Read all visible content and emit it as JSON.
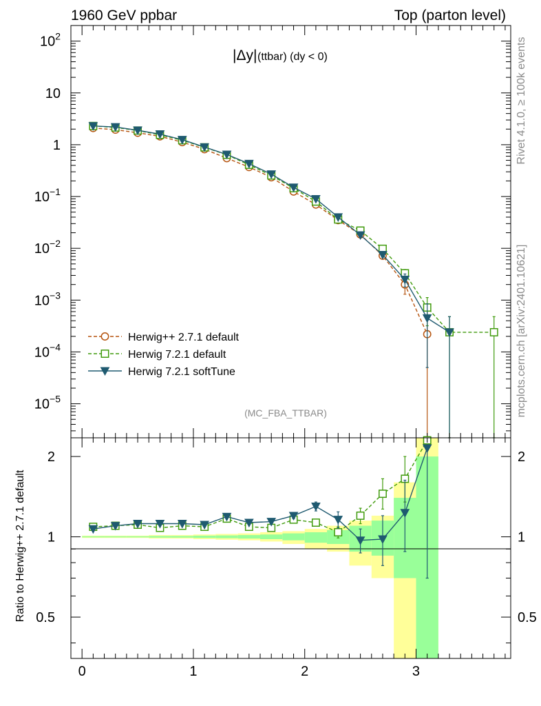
{
  "header": {
    "left": "1960 GeV ppbar",
    "right": "Top (parton level)"
  },
  "side_labels": {
    "rivet": "Rivet 4.1.0, ≥ 100k events",
    "mcplots": "mcplots.cern.ch [arXiv:2401.10621]"
  },
  "colors": {
    "herwigpp": "#b5530e",
    "herwig721": "#3f9a0b",
    "softtune": "#1f5a70",
    "band_yellow": "#ffff99",
    "band_green": "#99ff99"
  },
  "chart_data": [
    {
      "type": "line",
      "scale": "log",
      "title_main": "|Δy|",
      "title_sub": "(ttbar) (dy < 0)",
      "watermark": "(MC_FBA_TTBAR)",
      "ylim": [
        2.2e-06,
        200
      ],
      "xlim": [
        -0.1,
        3.85
      ],
      "y_ticks": [
        {
          "value": 100,
          "base": "10",
          "exp": "2"
        },
        {
          "value": 10,
          "base": "10",
          "exp": ""
        },
        {
          "value": 1,
          "base": "1",
          "exp": ""
        },
        {
          "value": 0.1,
          "base": "10",
          "exp": "−1"
        },
        {
          "value": 0.01,
          "base": "10",
          "exp": "−2"
        },
        {
          "value": 0.001,
          "base": "10",
          "exp": "−3"
        },
        {
          "value": 0.0001,
          "base": "10",
          "exp": "−4"
        },
        {
          "value": 1e-05,
          "base": "10",
          "exp": "−5"
        }
      ],
      "legend_position": "bottom-left",
      "series": [
        {
          "name": "Herwig++ 2.7.1 default",
          "key": "herwigpp",
          "marker": "circle",
          "dashed": true,
          "x": [
            0.1,
            0.3,
            0.5,
            0.7,
            0.9,
            1.1,
            1.3,
            1.5,
            1.7,
            1.9,
            2.1,
            2.3,
            2.5,
            2.7,
            2.9,
            3.1
          ],
          "y": [
            2.1,
            1.95,
            1.7,
            1.45,
            1.12,
            0.82,
            0.55,
            0.37,
            0.235,
            0.125,
            0.07,
            0.035,
            0.0185,
            0.0072,
            0.002,
            0.00022
          ],
          "err_low": [
            0,
            0,
            0,
            0,
            0,
            0,
            0,
            0,
            0,
            0,
            0,
            0,
            0,
            0.0006,
            0.0007,
            0.00022
          ],
          "err_high": [
            0,
            0,
            0,
            0,
            0,
            0,
            0,
            0,
            0,
            0,
            0,
            0,
            0,
            0.0006,
            0.0007,
            0.0002
          ]
        },
        {
          "name": "Herwig 7.2.1 default",
          "key": "herwig721",
          "marker": "square",
          "dashed": true,
          "x": [
            0.1,
            0.3,
            0.5,
            0.7,
            0.9,
            1.1,
            1.3,
            1.5,
            1.7,
            1.9,
            2.1,
            2.3,
            2.5,
            2.7,
            2.9,
            3.1,
            3.3,
            3.7
          ],
          "y": [
            2.3,
            2.15,
            1.88,
            1.55,
            1.22,
            0.89,
            0.64,
            0.41,
            0.255,
            0.145,
            0.08,
            0.036,
            0.022,
            0.0098,
            0.0033,
            0.00072,
            0.00024,
            0.00024
          ],
          "err_low": [
            0,
            0,
            0,
            0,
            0,
            0,
            0,
            0,
            0,
            0,
            0,
            0,
            0,
            0.0006,
            0.0006,
            0.0004,
            0.00024,
            0.00024
          ],
          "err_high": [
            0,
            0,
            0,
            0,
            0,
            0,
            0,
            0,
            0,
            0,
            0,
            0,
            0,
            0.0006,
            0.0006,
            0.0004,
            0.00024,
            0.00024
          ]
        },
        {
          "name": "Herwig 7.2.1 softTune",
          "key": "softtune",
          "marker": "triangle-down",
          "dashed": false,
          "x": [
            0.1,
            0.3,
            0.5,
            0.7,
            0.9,
            1.1,
            1.3,
            1.5,
            1.7,
            1.9,
            2.1,
            2.3,
            2.5,
            2.7,
            2.9,
            3.1,
            3.3
          ],
          "y": [
            2.3,
            2.2,
            1.9,
            1.6,
            1.25,
            0.9,
            0.65,
            0.43,
            0.27,
            0.15,
            0.09,
            0.04,
            0.018,
            0.0075,
            0.0025,
            0.00045,
            0.00024
          ],
          "err_low": [
            0,
            0,
            0,
            0,
            0,
            0,
            0,
            0,
            0,
            0,
            0,
            0,
            0,
            0.0007,
            0.0007,
            0.0004,
            0.00024
          ],
          "err_high": [
            0,
            0,
            0,
            0,
            0,
            0,
            0,
            0,
            0,
            0,
            0,
            0,
            0,
            0.0007,
            0.0007,
            0.0004,
            0.00024
          ]
        }
      ]
    },
    {
      "type": "line",
      "scale": "log",
      "ylabel": "Ratio to Herwig++ 2.7.1 default",
      "ylim": [
        0.35,
        2.35
      ],
      "xlim": [
        -0.1,
        3.85
      ],
      "y_ticks": [
        2,
        1,
        0.5
      ],
      "x_ticks": [
        0,
        1,
        2,
        3
      ],
      "reference": 1,
      "bands": [
        {
          "x0": 0.0,
          "x1": 0.2,
          "yl": 0.99,
          "yh": 1.01,
          "gl": 0.995,
          "gh": 1.005
        },
        {
          "x0": 0.2,
          "x1": 0.4,
          "yl": 0.99,
          "yh": 1.01,
          "gl": 0.995,
          "gh": 1.005
        },
        {
          "x0": 0.4,
          "x1": 0.6,
          "yl": 0.99,
          "yh": 1.01,
          "gl": 0.995,
          "gh": 1.005
        },
        {
          "x0": 0.6,
          "x1": 0.8,
          "yl": 0.985,
          "yh": 1.015,
          "gl": 0.993,
          "gh": 1.007
        },
        {
          "x0": 0.8,
          "x1": 1.0,
          "yl": 0.985,
          "yh": 1.015,
          "gl": 0.993,
          "gh": 1.007
        },
        {
          "x0": 1.0,
          "x1": 1.2,
          "yl": 0.98,
          "yh": 1.02,
          "gl": 0.99,
          "gh": 1.01
        },
        {
          "x0": 1.2,
          "x1": 1.4,
          "yl": 0.975,
          "yh": 1.025,
          "gl": 0.988,
          "gh": 1.012
        },
        {
          "x0": 1.4,
          "x1": 1.6,
          "yl": 0.97,
          "yh": 1.03,
          "gl": 0.985,
          "gh": 1.015
        },
        {
          "x0": 1.6,
          "x1": 1.8,
          "yl": 0.96,
          "yh": 1.04,
          "gl": 0.98,
          "gh": 1.02
        },
        {
          "x0": 1.8,
          "x1": 2.0,
          "yl": 0.94,
          "yh": 1.05,
          "gl": 0.97,
          "gh": 1.03
        },
        {
          "x0": 2.0,
          "x1": 2.2,
          "yl": 0.9,
          "yh": 1.07,
          "gl": 0.95,
          "gh": 1.04
        },
        {
          "x0": 2.2,
          "x1": 2.4,
          "yl": 0.88,
          "yh": 1.1,
          "gl": 0.94,
          "gh": 1.06
        },
        {
          "x0": 2.4,
          "x1": 2.6,
          "yl": 0.78,
          "yh": 1.15,
          "gl": 0.88,
          "gh": 1.1
        },
        {
          "x0": 2.6,
          "x1": 2.8,
          "yl": 0.7,
          "yh": 1.2,
          "gl": 0.85,
          "gh": 1.15
        },
        {
          "x0": 2.8,
          "x1": 3.0,
          "yl": 0.35,
          "yh": 1.6,
          "gl": 0.7,
          "gh": 1.4
        },
        {
          "x0": 3.0,
          "x1": 3.2,
          "yl": 0.35,
          "yh": 2.35,
          "gl": 0.35,
          "gh": 2.0
        }
      ],
      "series": [
        {
          "name": "Herwig 7.2.1 default",
          "key": "herwig721",
          "marker": "square",
          "dashed": true,
          "x": [
            0.1,
            0.3,
            0.5,
            0.7,
            0.9,
            1.1,
            1.3,
            1.5,
            1.7,
            1.9,
            2.1,
            2.3,
            2.5,
            2.7,
            2.9,
            3.1
          ],
          "y": [
            1.09,
            1.1,
            1.11,
            1.08,
            1.1,
            1.09,
            1.17,
            1.09,
            1.08,
            1.16,
            1.13,
            1.04,
            1.2,
            1.45,
            1.65,
            2.3
          ],
          "err_low": [
            0,
            0,
            0,
            0,
            0,
            0,
            0,
            0,
            0,
            0,
            0.03,
            0.05,
            0.08,
            0.18,
            0.3,
            0
          ],
          "err_high": [
            0,
            0,
            0,
            0,
            0,
            0,
            0,
            0,
            0,
            0,
            0.03,
            0.05,
            0.08,
            0.2,
            0.35,
            0
          ]
        },
        {
          "name": "Herwig 7.2.1 softTune",
          "key": "softtune",
          "marker": "triangle-down",
          "dashed": false,
          "x": [
            0.1,
            0.3,
            0.5,
            0.7,
            0.9,
            1.1,
            1.3,
            1.5,
            1.7,
            1.9,
            2.1,
            2.3,
            2.5,
            2.7,
            2.9,
            3.1
          ],
          "y": [
            1.07,
            1.1,
            1.12,
            1.12,
            1.12,
            1.11,
            1.19,
            1.13,
            1.14,
            1.2,
            1.3,
            1.16,
            0.97,
            0.98,
            1.23,
            2.15
          ],
          "err_low": [
            0,
            0,
            0,
            0,
            0,
            0,
            0,
            0,
            0,
            0.03,
            0.05,
            0.08,
            0.1,
            0.2,
            0.35,
            1.45
          ],
          "err_high": [
            0,
            0,
            0,
            0,
            0,
            0,
            0,
            0,
            0,
            0.03,
            0.05,
            0.08,
            0.1,
            0.22,
            0.4,
            0
          ]
        }
      ]
    }
  ]
}
